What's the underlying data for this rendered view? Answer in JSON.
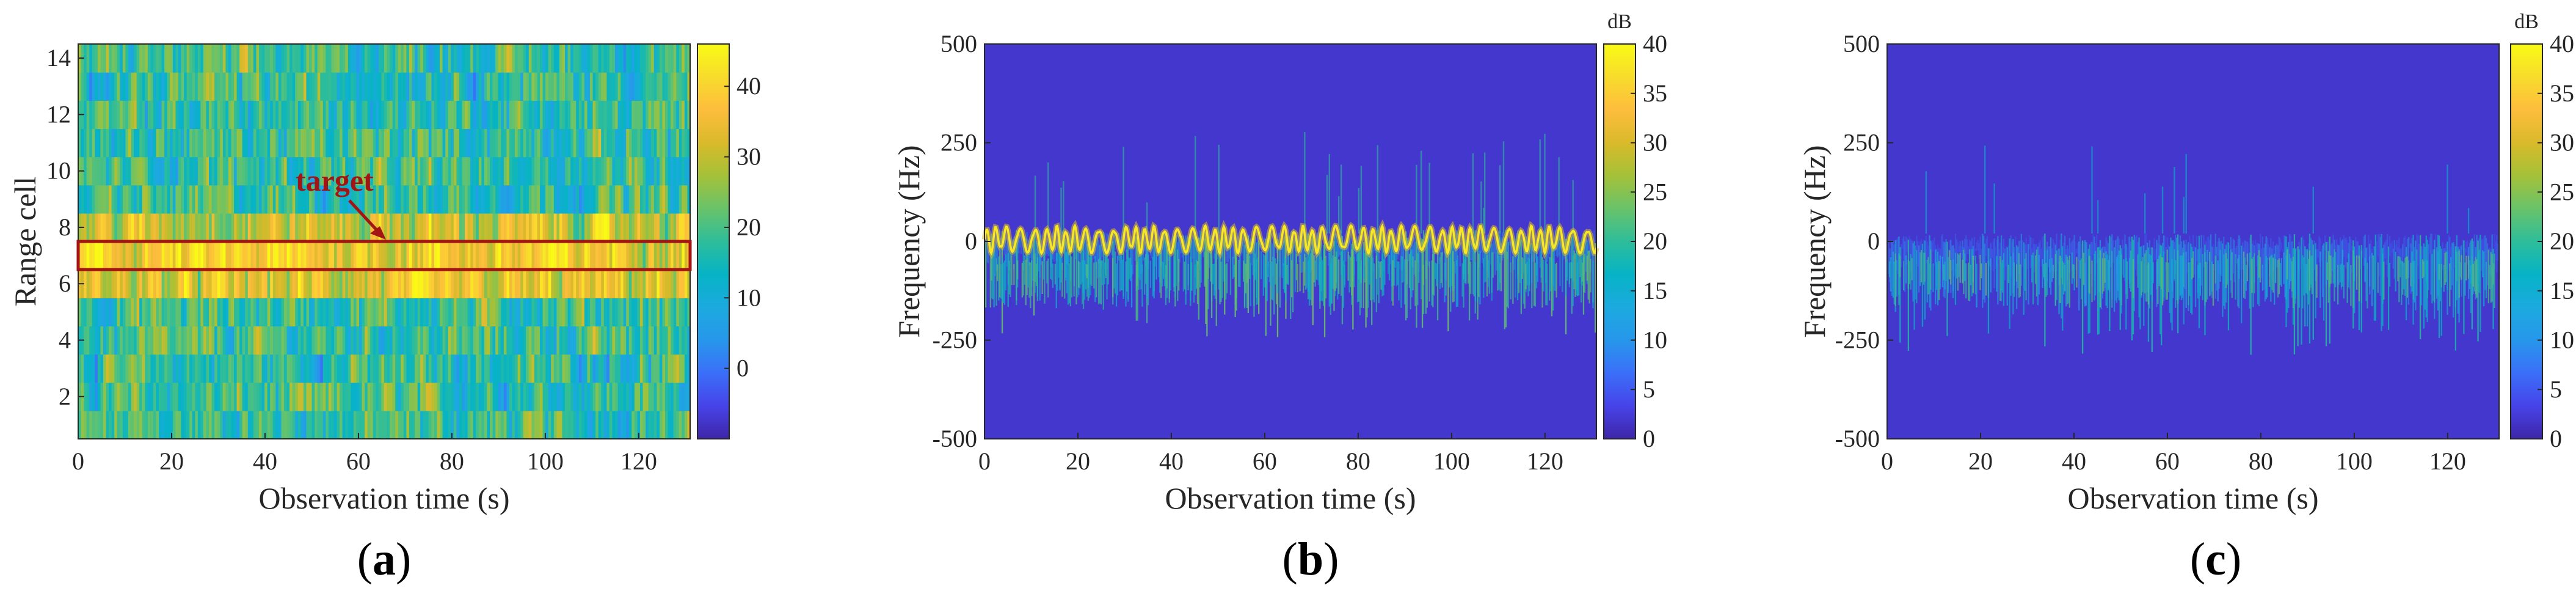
{
  "colors": {
    "parula": [
      "#3e26a8",
      "#4743e8",
      "#3b6ff9",
      "#2797eb",
      "#1caadf",
      "#06b3c5",
      "#2ebd9a",
      "#69c36a",
      "#a5c138",
      "#d9ba2a",
      "#fdbd3d",
      "#f8dc2c",
      "#f9fb15"
    ],
    "annotation": "#a31515",
    "axis": "#262626"
  },
  "chart_data": [
    {
      "type": "heatmap",
      "panel_label": "(a)",
      "panel_letter": "a",
      "xlabel": "Observation time (s)",
      "ylabel": "Range cell",
      "xlim": [
        0,
        131
      ],
      "ylim": [
        0.5,
        14.5
      ],
      "x_ticks": [
        0,
        20,
        40,
        60,
        80,
        100,
        120
      ],
      "y_ticks": [
        2,
        4,
        6,
        8,
        10,
        12,
        14
      ],
      "colorbar": {
        "range": [
          -10,
          46
        ],
        "ticks": [
          0,
          10,
          20,
          30,
          40
        ],
        "unit": ""
      },
      "row_mean_level": [
        18,
        18,
        17,
        18,
        19,
        32,
        37,
        31,
        18,
        18,
        18,
        17,
        18,
        18
      ],
      "annotation": {
        "text": "target",
        "box_range_cells": [
          6.5,
          7.5
        ],
        "box_time": [
          0,
          131
        ]
      }
    },
    {
      "type": "heatmap",
      "panel_label": "(b)",
      "panel_letter": "b",
      "xlabel": "Observation time (s)",
      "ylabel": "Frequency (Hz)",
      "xlim": [
        0,
        131
      ],
      "ylim": [
        -500,
        500
      ],
      "x_ticks": [
        0,
        20,
        40,
        60,
        80,
        100,
        120
      ],
      "y_ticks": [
        -500,
        -250,
        0,
        250,
        500
      ],
      "colorbar": {
        "range": [
          0,
          40
        ],
        "ticks": [
          0,
          5,
          10,
          15,
          20,
          25,
          30,
          35,
          40
        ],
        "unit": "dB"
      },
      "background_level_db": 2,
      "dominant_component": {
        "center_hz": 5,
        "amplitude_hz": 35,
        "peak_db": 38
      },
      "spread_band_hz": [
        -250,
        30
      ]
    },
    {
      "type": "heatmap",
      "panel_label": "(c)",
      "panel_letter": "c",
      "xlabel": "Observation time (s)",
      "ylabel": "Frequency (Hz)",
      "xlim": [
        0,
        131
      ],
      "ylim": [
        -500,
        500
      ],
      "x_ticks": [
        0,
        20,
        40,
        60,
        80,
        100,
        120
      ],
      "y_ticks": [
        -500,
        -250,
        0,
        250,
        500
      ],
      "colorbar": {
        "range": [
          0,
          40
        ],
        "ticks": [
          0,
          5,
          10,
          15,
          20,
          25,
          30,
          35,
          40
        ],
        "unit": "dB"
      },
      "background_level_db": 2,
      "spread_band_hz": [
        -300,
        20
      ],
      "peak_db": 24
    }
  ]
}
